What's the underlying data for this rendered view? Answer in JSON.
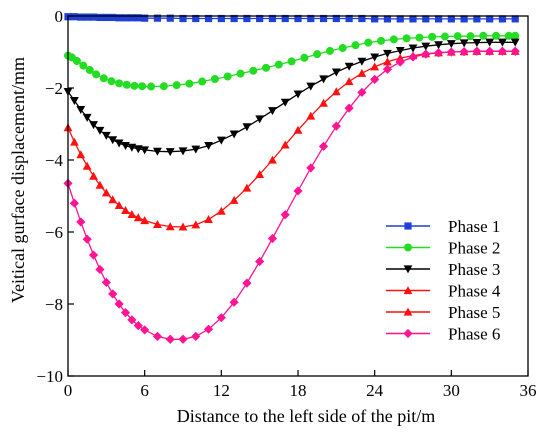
{
  "chart_data": {
    "type": "line",
    "xlabel": "Distance to the left side of the pit/m",
    "ylabel": "Veitical gurface displacement/mm",
    "xlim": [
      0,
      36
    ],
    "ylim": [
      -10,
      0
    ],
    "xticks": [
      "0",
      "6",
      "12",
      "18",
      "24",
      "30",
      "36"
    ],
    "yticks": [
      "0",
      "−2",
      "−4",
      "−6",
      "−8",
      "−10"
    ],
    "grid": false,
    "legend_position": "bottom-right",
    "series": [
      {
        "name": "Phase 1",
        "color": "#1f3fd6",
        "marker": "square",
        "x": [
          0,
          0.5,
          1,
          1.5,
          2,
          2.5,
          3,
          3.5,
          4,
          4.5,
          5,
          5.5,
          6,
          7,
          8,
          9,
          10,
          11,
          12,
          13,
          14,
          15,
          16,
          17,
          18,
          19,
          20,
          21,
          22,
          23,
          24,
          25,
          26,
          27,
          28,
          29,
          30,
          31,
          32,
          33,
          34,
          35
        ],
        "y": [
          -0.02,
          -0.02,
          -0.03,
          -0.03,
          -0.03,
          -0.04,
          -0.04,
          -0.04,
          -0.05,
          -0.05,
          -0.05,
          -0.05,
          -0.06,
          -0.06,
          -0.06,
          -0.07,
          -0.07,
          -0.07,
          -0.07,
          -0.07,
          -0.07,
          -0.07,
          -0.07,
          -0.07,
          -0.07,
          -0.07,
          -0.07,
          -0.07,
          -0.07,
          -0.07,
          -0.08,
          -0.08,
          -0.08,
          -0.08,
          -0.08,
          -0.08,
          -0.08,
          -0.08,
          -0.08,
          -0.08,
          -0.08,
          -0.08
        ]
      },
      {
        "name": "Phase 2",
        "color": "#22dd22",
        "marker": "circle",
        "x": [
          0,
          0.3,
          0.7,
          1.2,
          1.7,
          2.2,
          2.8,
          3.4,
          4,
          4.6,
          5.2,
          5.8,
          6.5,
          7.5,
          8.5,
          9.5,
          10.5,
          11.5,
          12.5,
          13.5,
          14.5,
          15.5,
          16.5,
          17.5,
          18.5,
          19.5,
          20.5,
          21.5,
          22.5,
          23.5,
          24.5,
          25.5,
          26.5,
          27.5,
          28.5,
          29.5,
          30.5,
          31.5,
          32.5,
          33.5,
          34.5,
          35
        ],
        "y": [
          -1.1,
          -1.15,
          -1.25,
          -1.38,
          -1.5,
          -1.62,
          -1.73,
          -1.81,
          -1.87,
          -1.91,
          -1.94,
          -1.95,
          -1.96,
          -1.95,
          -1.92,
          -1.88,
          -1.82,
          -1.75,
          -1.68,
          -1.6,
          -1.52,
          -1.44,
          -1.35,
          -1.26,
          -1.16,
          -1.06,
          -0.97,
          -0.89,
          -0.81,
          -0.74,
          -0.69,
          -0.65,
          -0.62,
          -0.6,
          -0.58,
          -0.57,
          -0.56,
          -0.56,
          -0.55,
          -0.55,
          -0.55,
          -0.55
        ]
      },
      {
        "name": "Phase 3",
        "color": "#000000",
        "marker": "triangle-down",
        "x": [
          0,
          0.5,
          1,
          1.5,
          2,
          2.5,
          3,
          3.5,
          4,
          4.5,
          5,
          5.5,
          6,
          7,
          8,
          9,
          10,
          11,
          12,
          13,
          14,
          15,
          16,
          17,
          18,
          19,
          20,
          21,
          22,
          23,
          24,
          25,
          26,
          27,
          28,
          29,
          30,
          31,
          32,
          33,
          34,
          35
        ],
        "y": [
          -2.1,
          -2.35,
          -2.6,
          -2.82,
          -3.02,
          -3.18,
          -3.32,
          -3.44,
          -3.53,
          -3.6,
          -3.65,
          -3.69,
          -3.72,
          -3.76,
          -3.77,
          -3.75,
          -3.7,
          -3.6,
          -3.45,
          -3.28,
          -3.08,
          -2.86,
          -2.63,
          -2.4,
          -2.17,
          -1.95,
          -1.75,
          -1.56,
          -1.4,
          -1.26,
          -1.14,
          -1.04,
          -0.96,
          -0.89,
          -0.84,
          -0.8,
          -0.77,
          -0.75,
          -0.74,
          -0.73,
          -0.73,
          -0.73
        ]
      },
      {
        "name": "Phase 4",
        "color": "#ff1111",
        "marker": "triangle-up",
        "x": [
          0,
          0.5,
          1,
          1.5,
          2,
          2.5,
          3,
          3.5,
          4,
          4.5,
          5,
          5.5,
          6,
          7,
          8,
          9,
          10,
          11,
          12,
          13,
          14,
          15,
          16,
          17,
          18,
          19,
          20,
          21,
          22,
          23,
          24,
          25,
          26,
          27,
          28,
          29,
          30,
          31,
          32,
          33,
          34,
          35
        ],
        "y": [
          -3.1,
          -3.5,
          -3.85,
          -4.17,
          -4.45,
          -4.7,
          -4.91,
          -5.1,
          -5.26,
          -5.4,
          -5.51,
          -5.6,
          -5.68,
          -5.79,
          -5.85,
          -5.86,
          -5.8,
          -5.65,
          -5.42,
          -5.12,
          -4.78,
          -4.4,
          -4.0,
          -3.58,
          -3.17,
          -2.78,
          -2.42,
          -2.1,
          -1.82,
          -1.59,
          -1.41,
          -1.27,
          -1.17,
          -1.1,
          -1.05,
          -1.02,
          -1.0,
          -0.99,
          -0.98,
          -0.98,
          -0.98,
          -0.98
        ]
      },
      {
        "name": "Phase 5",
        "color": "#ff1111",
        "marker": "triangle-up",
        "x": [],
        "y": []
      },
      {
        "name": "Phase 6",
        "color": "#ff1493",
        "marker": "diamond",
        "x": [
          0,
          0.5,
          1,
          1.5,
          2,
          2.5,
          3,
          3.5,
          4,
          4.5,
          5,
          5.5,
          6,
          7,
          8,
          9,
          10,
          11,
          12,
          13,
          14,
          15,
          16,
          17,
          18,
          19,
          20,
          21,
          22,
          23,
          24,
          25,
          26,
          27,
          28,
          29,
          30,
          31,
          32,
          33,
          34,
          35
        ],
        "y": [
          -4.65,
          -5.2,
          -5.72,
          -6.2,
          -6.64,
          -7.04,
          -7.4,
          -7.72,
          -8.0,
          -8.24,
          -8.44,
          -8.6,
          -8.72,
          -8.9,
          -8.98,
          -8.98,
          -8.9,
          -8.7,
          -8.38,
          -7.95,
          -7.42,
          -6.82,
          -6.18,
          -5.52,
          -4.86,
          -4.22,
          -3.62,
          -3.06,
          -2.56,
          -2.12,
          -1.76,
          -1.48,
          -1.28,
          -1.14,
          -1.06,
          -1.02,
          -1.0,
          -0.99,
          -0.98,
          -0.98,
          -0.98,
          -0.98
        ]
      }
    ]
  }
}
